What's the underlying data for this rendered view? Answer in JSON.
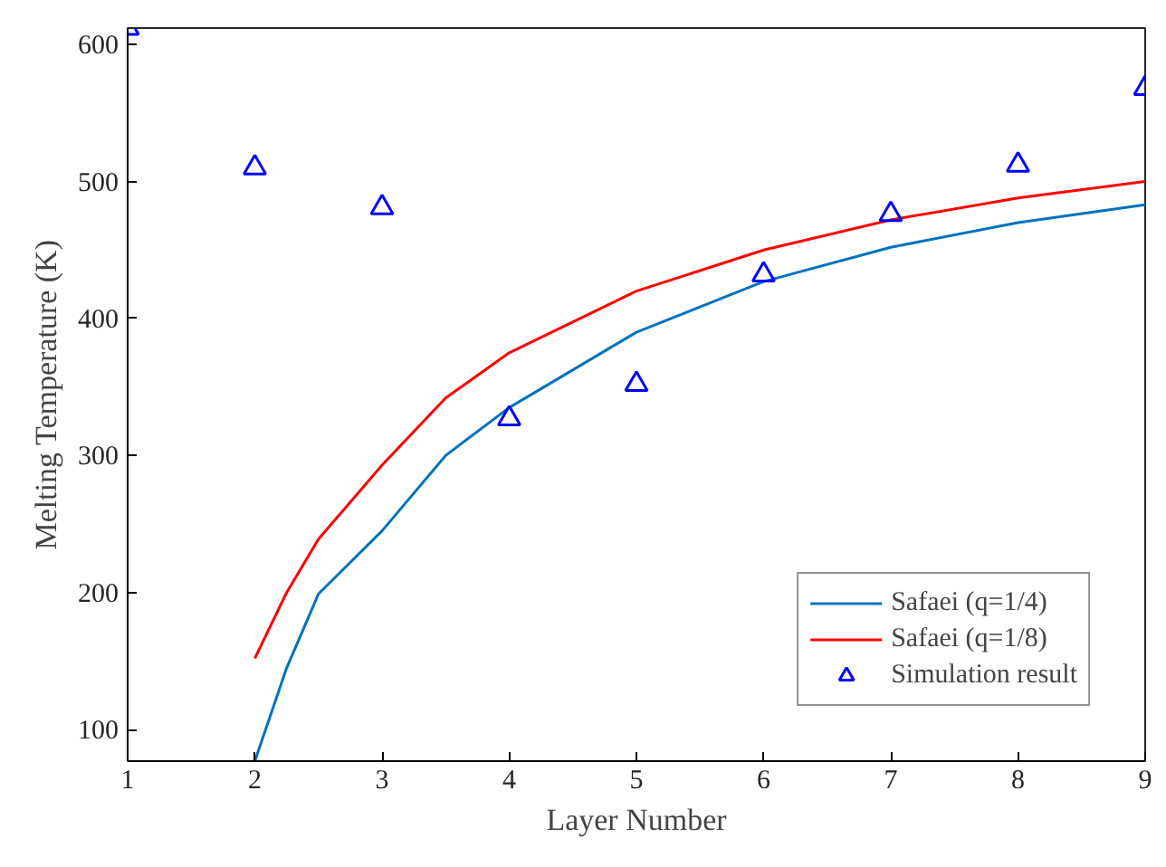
{
  "chart_data": {
    "type": "line",
    "xlabel": "Layer Number",
    "ylabel": "Melting Temperature (K)",
    "xlim": [
      1,
      9
    ],
    "xticks": [
      1,
      2,
      3,
      4,
      5,
      6,
      7,
      8,
      9
    ],
    "ylim": [
      77,
      612
    ],
    "yticks": [
      100,
      200,
      300,
      400,
      500,
      600
    ],
    "grid": false,
    "legend": "bottom right",
    "series": [
      {
        "name": "Safaei (q=1/4)",
        "color": "#0072bd",
        "marker": "none",
        "x": [
          2,
          2.25,
          2.5,
          3,
          3.5,
          4,
          5,
          6,
          7,
          8,
          9
        ],
        "values": [
          77,
          145,
          199,
          245,
          300,
          335,
          390,
          427,
          452,
          470,
          483
        ]
      },
      {
        "name": "Safaei (q=1/8)",
        "color": "#ff0000",
        "marker": "none",
        "x": [
          2,
          2.25,
          2.5,
          3,
          3.5,
          4,
          5,
          6,
          7,
          8,
          9
        ],
        "values": [
          152,
          200,
          239,
          293,
          342,
          375,
          420,
          450,
          472,
          488,
          500
        ]
      },
      {
        "name": "Simulation result",
        "type": "scatter",
        "color": "#0000ff",
        "marker": "triangle",
        "x": [
          1,
          2,
          3,
          4,
          5,
          6,
          7,
          8,
          9
        ],
        "values": [
          612,
          510,
          481,
          327,
          352,
          432,
          476,
          512,
          568
        ]
      }
    ]
  }
}
